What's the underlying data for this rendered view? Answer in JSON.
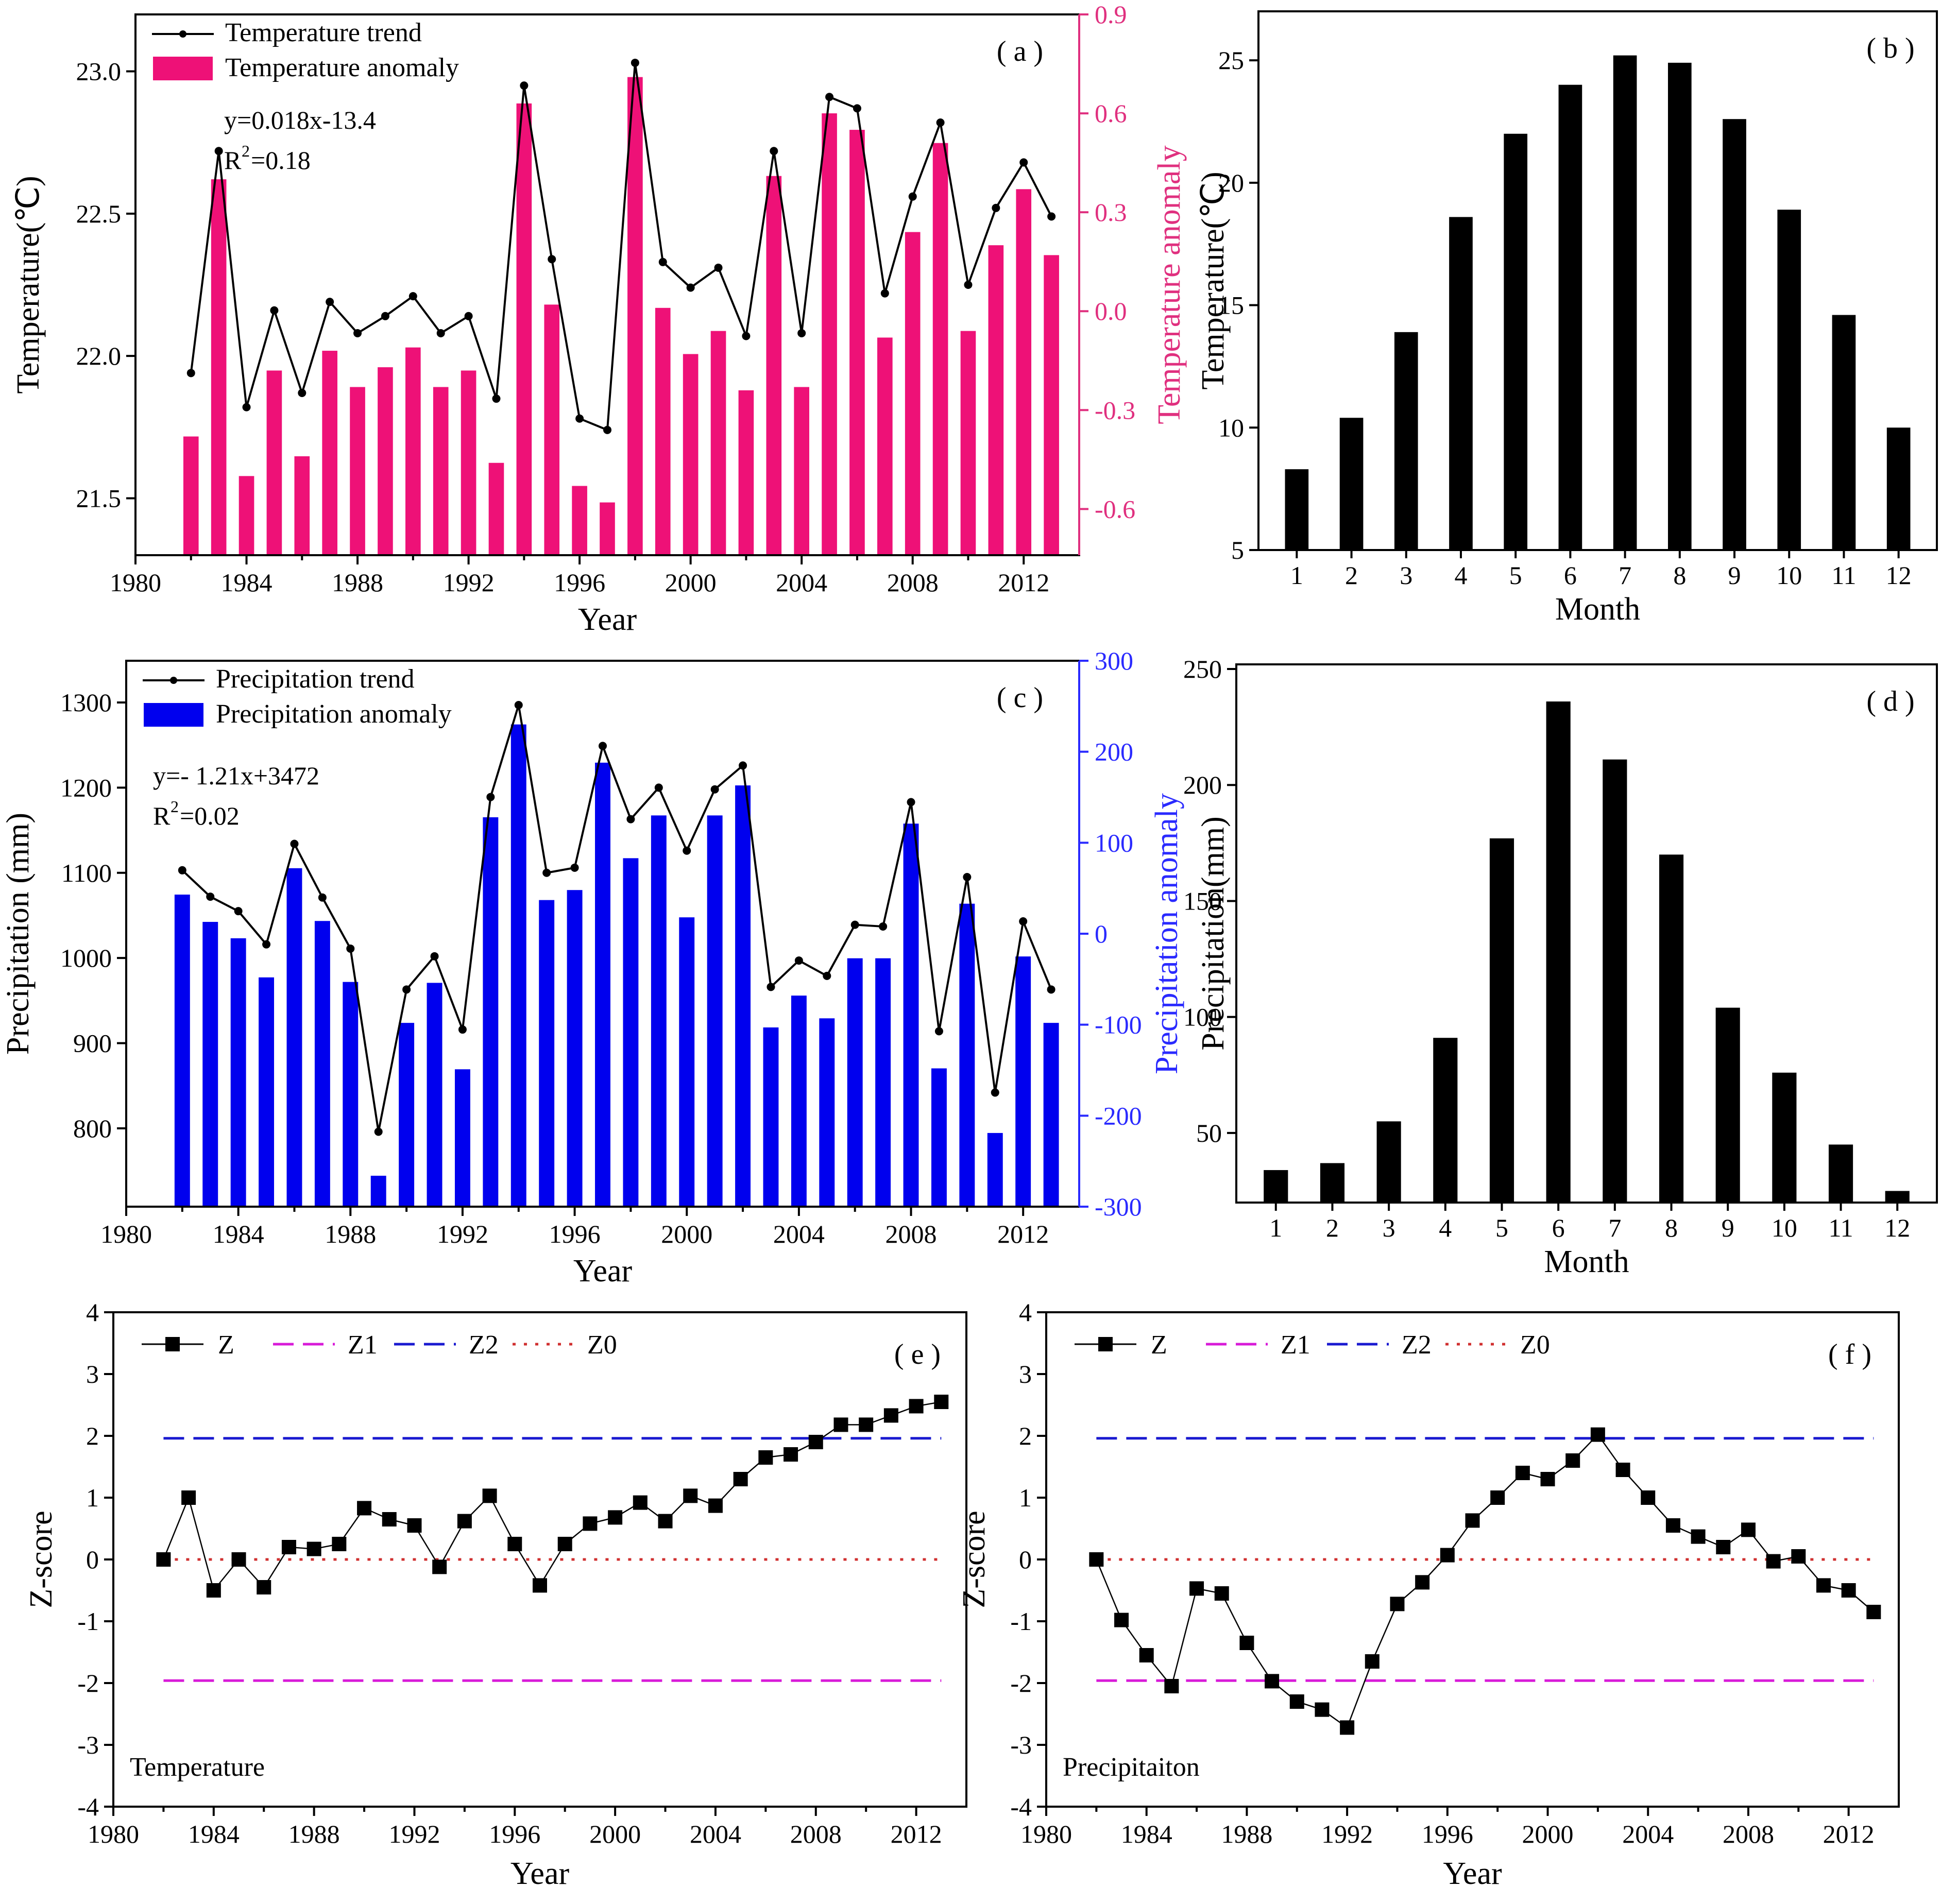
{
  "chart_data": [
    {
      "id": "a",
      "type": "bar+line",
      "panel_label": "( a )",
      "xlabel": "Year",
      "ylabel": "Temperature(℃)",
      "ylabel_right": "Temperature anomaly",
      "xlim": [
        1980,
        2014
      ],
      "ylim": [
        21.3,
        23.2
      ],
      "ylim_right": [
        -0.74,
        0.9
      ],
      "xticks": [
        1980,
        1984,
        1988,
        1992,
        1996,
        2000,
        2004,
        2008,
        2012
      ],
      "yticks": [
        21.5,
        22.0,
        22.5,
        23.0
      ],
      "yticks_right": [
        -0.6,
        -0.3,
        0.0,
        0.3,
        0.6,
        0.9
      ],
      "yticks_right_labels": [
        "-0.6",
        "-0.3",
        "0.0",
        "0.3",
        "0.6",
        "0.9"
      ],
      "legend": [
        "Temperature trend",
        "Temperature anomaly"
      ],
      "legend_position": "top-left",
      "annotations": [
        "y=0.018x-13.4",
        "R",
        "2",
        "=0.18"
      ],
      "colors": {
        "bar": "#ee1177",
        "line": "#000000",
        "right_axis": "#e0307f"
      },
      "x": [
        1982,
        1983,
        1984,
        1985,
        1986,
        1987,
        1988,
        1989,
        1990,
        1991,
        1992,
        1993,
        1994,
        1995,
        1996,
        1997,
        1998,
        1999,
        2000,
        2001,
        2002,
        2003,
        2004,
        2005,
        2006,
        2007,
        2008,
        2009,
        2010,
        2011,
        2012,
        2013
      ],
      "series": [
        {
          "name": "Temperature trend",
          "type": "line",
          "axis": "left",
          "values": [
            21.94,
            22.72,
            21.82,
            22.16,
            21.87,
            22.19,
            22.08,
            22.14,
            22.21,
            22.08,
            22.14,
            21.85,
            22.95,
            22.34,
            21.78,
            21.74,
            23.03,
            22.33,
            22.24,
            22.31,
            22.07,
            22.72,
            22.08,
            22.91,
            22.87,
            22.22,
            22.56,
            22.82,
            22.25,
            22.52,
            22.68,
            22.49
          ]
        },
        {
          "name": "Temperature anomaly",
          "type": "bar",
          "axis": "right",
          "values": [
            -0.38,
            0.4,
            -0.5,
            -0.18,
            -0.44,
            -0.12,
            -0.23,
            -0.17,
            -0.11,
            -0.23,
            -0.18,
            -0.46,
            0.63,
            0.02,
            -0.53,
            -0.58,
            0.71,
            0.01,
            -0.13,
            -0.06,
            -0.24,
            0.41,
            -0.23,
            0.6,
            0.55,
            -0.08,
            0.24,
            0.51,
            -0.06,
            0.2,
            0.37,
            0.17
          ]
        }
      ]
    },
    {
      "id": "b",
      "type": "bar",
      "panel_label": "( b )",
      "xlabel": "Month",
      "ylabel": "Temperature(℃)",
      "ylim": [
        5,
        27
      ],
      "yticks": [
        5,
        10,
        15,
        20,
        25
      ],
      "categories": [
        "1",
        "2",
        "3",
        "4",
        "5",
        "6",
        "7",
        "8",
        "9",
        "10",
        "11",
        "12"
      ],
      "values": [
        8.3,
        10.4,
        13.9,
        18.6,
        22.0,
        24.0,
        25.2,
        24.9,
        22.6,
        18.9,
        14.6,
        10.0
      ]
    },
    {
      "id": "c",
      "type": "bar+line",
      "panel_label": "( c )",
      "xlabel": "Year",
      "ylabel": "Precipitation (mm)",
      "ylabel_right": "Precipitation anomaly",
      "xlim": [
        1980,
        2014
      ],
      "ylim": [
        708,
        1349
      ],
      "ylim_right": [
        -300,
        300
      ],
      "xticks": [
        1980,
        1984,
        1988,
        1992,
        1996,
        2000,
        2004,
        2008,
        2012
      ],
      "yticks": [
        800,
        900,
        1000,
        1100,
        1200,
        1300
      ],
      "yticks_right": [
        -300,
        -200,
        -100,
        0,
        100,
        200,
        300
      ],
      "legend": [
        "Precipitation trend",
        "Precipitation anomaly"
      ],
      "legend_position": "top-left",
      "annotations": [
        "y=- 1.21x+3472",
        "R",
        "2",
        "=0.02"
      ],
      "colors": {
        "bar": "#0000ee",
        "line": "#000000",
        "right_axis": "#2a2aff"
      },
      "x": [
        1982,
        1983,
        1984,
        1985,
        1986,
        1987,
        1988,
        1989,
        1990,
        1991,
        1992,
        1993,
        1994,
        1995,
        1996,
        1997,
        1998,
        1999,
        2000,
        2001,
        2002,
        2003,
        2004,
        2005,
        2006,
        2007,
        2008,
        2009,
        2010,
        2011,
        2012,
        2013
      ],
      "series": [
        {
          "name": "Precipitation trend",
          "type": "line",
          "axis": "left",
          "values": [
            1103,
            1072,
            1055,
            1016,
            1134,
            1071,
            1011,
            796,
            963,
            1002,
            916,
            1189,
            1297,
            1100,
            1106,
            1249,
            1163,
            1200,
            1126,
            1198,
            1226,
            966,
            997,
            979,
            1039,
            1037,
            1183,
            914,
            1095,
            842,
            1043,
            963
          ]
        },
        {
          "name": "Precipitation anomaly",
          "type": "bar",
          "axis": "right",
          "values": [
            43,
            13,
            -5,
            -48,
            72,
            14,
            -53,
            -266,
            -98,
            -54,
            -149,
            128,
            230,
            37,
            48,
            188,
            83,
            130,
            18,
            130,
            163,
            -103,
            -68,
            -93,
            -27,
            -27,
            121,
            -148,
            33,
            -219,
            -25,
            -98
          ]
        }
      ]
    },
    {
      "id": "d",
      "type": "bar",
      "panel_label": "( d )",
      "xlabel": "Month",
      "ylabel": "Precipitation(mm)",
      "ylim": [
        20,
        252
      ],
      "yticks": [
        50,
        100,
        150,
        200,
        250
      ],
      "categories": [
        "1",
        "2",
        "3",
        "4",
        "5",
        "6",
        "7",
        "8",
        "9",
        "10",
        "11",
        "12"
      ],
      "values": [
        34,
        37,
        55,
        91,
        177,
        236,
        211,
        170,
        104,
        76,
        45,
        25
      ]
    },
    {
      "id": "e",
      "type": "line",
      "panel_label": "( e )",
      "xlabel": "Year",
      "ylabel": "Z-score",
      "xlim": [
        1980,
        2014
      ],
      "ylim": [
        -4,
        4
      ],
      "xticks": [
        1980,
        1984,
        1988,
        1992,
        1996,
        2000,
        2004,
        2008,
        2012
      ],
      "yticks": [
        -4,
        -3,
        -2,
        -1,
        0,
        1,
        2,
        3,
        4
      ],
      "legend": [
        "Z",
        "Z1",
        "Z2",
        "Z0"
      ],
      "legend_position": "top",
      "inner_label": "Temperature",
      "reference_lines": {
        "Z1": -1.96,
        "Z2": 1.96,
        "Z0": 0
      },
      "colors": {
        "Z": "#000000",
        "Z1": "#d81bd8",
        "Z2": "#1a1ad0",
        "Z0": "#d03030"
      },
      "x": [
        1982,
        1983,
        1984,
        1985,
        1986,
        1987,
        1988,
        1989,
        1990,
        1991,
        1992,
        1993,
        1994,
        1995,
        1996,
        1997,
        1998,
        1999,
        2000,
        2001,
        2002,
        2003,
        2004,
        2005,
        2006,
        2007,
        2008,
        2009,
        2010,
        2011,
        2012,
        2013
      ],
      "series": [
        {
          "name": "Z",
          "values": [
            0.0,
            1.0,
            -0.5,
            0.0,
            -0.45,
            0.2,
            0.17,
            0.25,
            0.83,
            0.65,
            0.55,
            -0.12,
            0.62,
            1.03,
            0.25,
            -0.42,
            0.25,
            0.58,
            0.68,
            0.92,
            0.62,
            1.03,
            0.87,
            1.3,
            1.65,
            1.7,
            1.9,
            2.18,
            2.18,
            2.33,
            2.48,
            2.55
          ]
        }
      ]
    },
    {
      "id": "f",
      "type": "line",
      "panel_label": "( f )",
      "xlabel": "Year",
      "ylabel": "Z-score",
      "xlim": [
        1980,
        2014
      ],
      "ylim": [
        -4,
        4
      ],
      "xticks": [
        1980,
        1984,
        1988,
        1992,
        1996,
        2000,
        2004,
        2008,
        2012
      ],
      "yticks": [
        -4,
        -3,
        -2,
        -1,
        0,
        1,
        2,
        3,
        4
      ],
      "legend": [
        "Z",
        "Z1",
        "Z2",
        "Z0"
      ],
      "legend_position": "top",
      "inner_label": "Precipitaiton",
      "reference_lines": {
        "Z1": -1.96,
        "Z2": 1.96,
        "Z0": 0
      },
      "colors": {
        "Z": "#000000",
        "Z1": "#d81bd8",
        "Z2": "#1a1ad0",
        "Z0": "#d03030"
      },
      "x": [
        1982,
        1983,
        1984,
        1985,
        1986,
        1987,
        1988,
        1989,
        1990,
        1991,
        1992,
        1993,
        1994,
        1995,
        1996,
        1997,
        1998,
        1999,
        2000,
        2001,
        2002,
        2003,
        2004,
        2005,
        2006,
        2007,
        2008,
        2009,
        2010,
        2011,
        2012,
        2013
      ],
      "series": [
        {
          "name": "Z",
          "values": [
            0.0,
            -0.98,
            -1.55,
            -2.05,
            -0.47,
            -0.55,
            -1.35,
            -1.97,
            -2.3,
            -2.43,
            -2.72,
            -1.65,
            -0.72,
            -0.37,
            0.07,
            0.63,
            1.0,
            1.4,
            1.3,
            1.6,
            2.02,
            1.45,
            1.0,
            0.55,
            0.37,
            0.2,
            0.48,
            -0.03,
            0.05,
            -0.42,
            -0.5,
            -0.85
          ]
        }
      ]
    }
  ]
}
